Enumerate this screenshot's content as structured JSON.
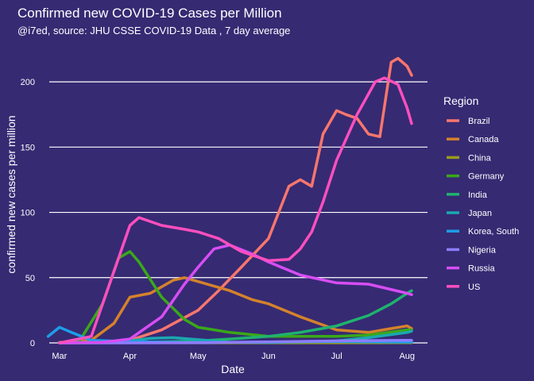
{
  "chart_data": {
    "type": "line",
    "title": "Confirmed new COVID-19 Cases per Million",
    "subtitle": "@i7ed, source: JHU CSSE COVID-19 Data ,  7 day average",
    "xlabel": "Date",
    "ylabel": "confirmed new cases per million",
    "x_ticks": [
      "Mar",
      "Apr",
      "May",
      "Jun",
      "Jul",
      "Aug"
    ],
    "x_tick_dates": [
      "2020-03-01",
      "2020-04-01",
      "2020-05-01",
      "2020-06-01",
      "2020-07-01",
      "2020-08-01"
    ],
    "y_ticks": [
      0,
      50,
      100,
      150,
      200
    ],
    "xlim": [
      "2020-02-22",
      "2020-08-10"
    ],
    "ylim": [
      0,
      225
    ],
    "grid": "horizontal",
    "legend_title": "Region",
    "legend_position": "right",
    "background": "#362a73",
    "series": [
      {
        "name": "Brazil",
        "color": "#f8766d",
        "x": [
          "2020-03-01",
          "2020-03-15",
          "2020-04-01",
          "2020-04-15",
          "2020-05-01",
          "2020-05-10",
          "2020-05-20",
          "2020-06-01",
          "2020-06-10",
          "2020-06-15",
          "2020-06-20",
          "2020-06-25",
          "2020-07-01",
          "2020-07-05",
          "2020-07-10",
          "2020-07-15",
          "2020-07-20",
          "2020-07-25",
          "2020-07-28",
          "2020-08-01",
          "2020-08-03"
        ],
        "y": [
          0,
          0.1,
          2,
          10,
          25,
          40,
          58,
          80,
          120,
          125,
          120,
          160,
          178,
          175,
          172,
          160,
          158,
          215,
          218,
          212,
          205
        ]
      },
      {
        "name": "Canada",
        "color": "#d4822b",
        "x": [
          "2020-03-01",
          "2020-03-15",
          "2020-03-25",
          "2020-04-01",
          "2020-04-10",
          "2020-04-20",
          "2020-04-25",
          "2020-05-01",
          "2020-05-15",
          "2020-05-25",
          "2020-06-01",
          "2020-06-15",
          "2020-07-01",
          "2020-07-15",
          "2020-07-25",
          "2020-08-01",
          "2020-08-03"
        ],
        "y": [
          0,
          2,
          15,
          35,
          38,
          48,
          50,
          47,
          40,
          33,
          30,
          20,
          10,
          8,
          11,
          13,
          11
        ]
      },
      {
        "name": "China",
        "color": "#9a9a1d",
        "x": [
          "2020-03-01",
          "2020-03-15",
          "2020-04-01",
          "2020-05-01",
          "2020-06-01",
          "2020-07-01",
          "2020-08-01",
          "2020-08-03"
        ],
        "y": [
          0.5,
          0.2,
          0.1,
          0.05,
          0.05,
          0.05,
          0.1,
          0.1
        ]
      },
      {
        "name": "Germany",
        "color": "#3aa819",
        "x": [
          "2020-03-01",
          "2020-03-10",
          "2020-03-20",
          "2020-03-27",
          "2020-04-01",
          "2020-04-05",
          "2020-04-15",
          "2020-04-25",
          "2020-05-01",
          "2020-05-15",
          "2020-06-01",
          "2020-07-01",
          "2020-07-15",
          "2020-08-01",
          "2020-08-03"
        ],
        "y": [
          0,
          2,
          30,
          65,
          70,
          62,
          35,
          18,
          12,
          8,
          5,
          5,
          6,
          10,
          10
        ]
      },
      {
        "name": "India",
        "color": "#1fb36e",
        "x": [
          "2020-03-01",
          "2020-04-01",
          "2020-05-01",
          "2020-05-15",
          "2020-06-01",
          "2020-06-15",
          "2020-07-01",
          "2020-07-15",
          "2020-07-25",
          "2020-08-01",
          "2020-08-03"
        ],
        "y": [
          0,
          0.1,
          1.5,
          3,
          5,
          8,
          13,
          21,
          30,
          38,
          40
        ]
      },
      {
        "name": "Japan",
        "color": "#1aa8b0",
        "x": [
          "2020-03-01",
          "2020-03-15",
          "2020-04-01",
          "2020-04-10",
          "2020-04-20",
          "2020-05-01",
          "2020-05-15",
          "2020-06-01",
          "2020-07-01",
          "2020-07-15",
          "2020-08-01",
          "2020-08-03"
        ],
        "y": [
          0.1,
          0.4,
          1.5,
          3.5,
          4,
          2.5,
          0.5,
          0.3,
          1.5,
          4,
          8,
          9
        ]
      },
      {
        "name": "Korea, South",
        "color": "#1d9ee8",
        "x": [
          "2020-02-25",
          "2020-03-01",
          "2020-03-05",
          "2020-03-15",
          "2020-04-01",
          "2020-05-01",
          "2020-06-01",
          "2020-07-01",
          "2020-08-01",
          "2020-08-03"
        ],
        "y": [
          5,
          12,
          9,
          2,
          1,
          0.3,
          0.8,
          1,
          0.6,
          0.6
        ]
      },
      {
        "name": "Nigeria",
        "color": "#8e7dff",
        "x": [
          "2020-03-01",
          "2020-04-01",
          "2020-05-01",
          "2020-06-01",
          "2020-07-01",
          "2020-08-01",
          "2020-08-03"
        ],
        "y": [
          0,
          0,
          0.1,
          0.8,
          1.5,
          2,
          2
        ]
      },
      {
        "name": "Russia",
        "color": "#d74df3",
        "x": [
          "2020-03-01",
          "2020-03-20",
          "2020-04-01",
          "2020-04-15",
          "2020-04-25",
          "2020-05-01",
          "2020-05-08",
          "2020-05-15",
          "2020-05-25",
          "2020-06-01",
          "2020-06-15",
          "2020-07-01",
          "2020-07-15",
          "2020-08-01",
          "2020-08-03"
        ],
        "y": [
          0,
          0.5,
          3,
          20,
          45,
          58,
          72,
          75,
          68,
          62,
          52,
          46,
          45,
          38,
          37
        ]
      },
      {
        "name": "US",
        "color": "#ff4fbe",
        "x": [
          "2020-03-01",
          "2020-03-15",
          "2020-03-25",
          "2020-04-01",
          "2020-04-05",
          "2020-04-15",
          "2020-04-25",
          "2020-05-01",
          "2020-05-10",
          "2020-05-20",
          "2020-06-01",
          "2020-06-10",
          "2020-06-15",
          "2020-06-20",
          "2020-06-25",
          "2020-07-01",
          "2020-07-10",
          "2020-07-18",
          "2020-07-22",
          "2020-07-28",
          "2020-08-01",
          "2020-08-03"
        ],
        "y": [
          0,
          5,
          55,
          90,
          96,
          90,
          87,
          85,
          80,
          70,
          63,
          64,
          72,
          85,
          108,
          140,
          175,
          200,
          203,
          198,
          180,
          168
        ]
      }
    ]
  }
}
